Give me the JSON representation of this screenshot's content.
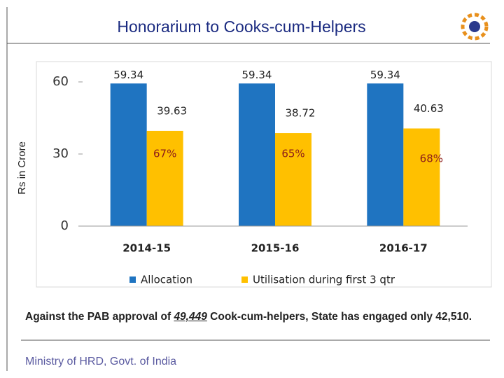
{
  "chart_data": {
    "type": "bar",
    "title": "Honorarium to Cooks-cum-Helpers",
    "y_label": "Rs in Crore",
    "categories": [
      "2014-15",
      "2015-16",
      "2016-17"
    ],
    "series": [
      {
        "name": "Allocation",
        "color": "#1f74c1",
        "values": [
          59.34,
          59.34,
          59.34
        ]
      },
      {
        "name": "Utilisation during first 3 qtr",
        "color": "#ffc000",
        "values": [
          39.63,
          38.72,
          40.63
        ]
      }
    ],
    "annotations": [
      "67%",
      "65%",
      "68%"
    ],
    "ylim": [
      0,
      60
    ],
    "yticks": [
      0,
      30,
      60
    ],
    "grid": false
  },
  "note": {
    "before": "Against the PAB approval of ",
    "highlight": "49,449",
    "after": " Cook-cum-helpers, State has engaged only 42,510."
  },
  "footer": "Ministry of HRD, Govt. of India"
}
